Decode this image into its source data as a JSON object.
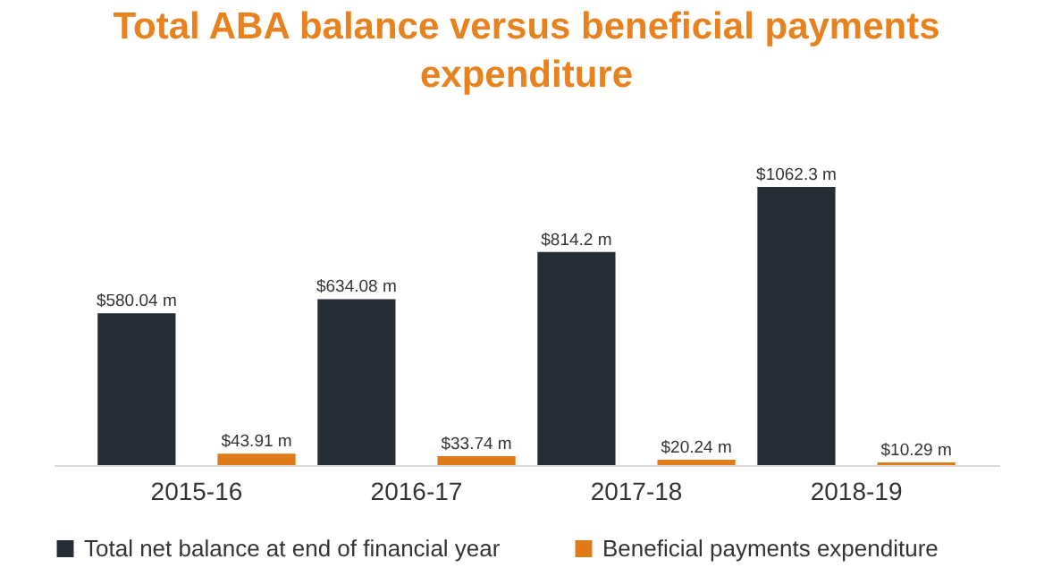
{
  "chart_data": {
    "type": "bar",
    "title": "Total ABA balance versus beneficial payments expenditure",
    "categories": [
      "2015-16",
      "2016-17",
      "2017-18",
      "2018-19"
    ],
    "series": [
      {
        "name": "Total net balance at end of financial year",
        "color": "#262d37",
        "values": [
          580.04,
          634.08,
          814.2,
          1062.3
        ],
        "value_labels": [
          "$580.04 m",
          "$634.08 m",
          "$814.2 m",
          "$1062.3 m"
        ]
      },
      {
        "name": "Beneficial payments expenditure",
        "color": "#e07b1a",
        "values": [
          43.91,
          33.74,
          20.24,
          10.29
        ],
        "value_labels": [
          "$43.91 m",
          "$33.74 m",
          "$20.24 m",
          "$10.29 m"
        ]
      }
    ],
    "legend": "bottom",
    "tick_labels": "x"
  }
}
